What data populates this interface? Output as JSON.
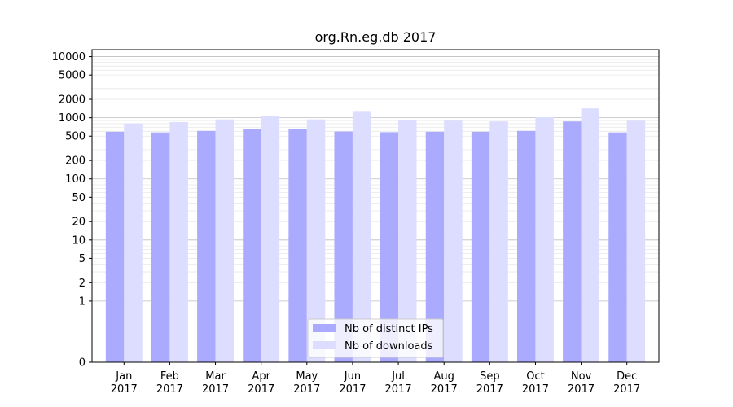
{
  "chart_data": {
    "type": "bar",
    "title": "org.Rn.eg.db 2017",
    "xlabel": "",
    "ylabel": "",
    "y_scale": "symlog",
    "ylim": [
      0,
      13000
    ],
    "y_ticks": [
      0,
      1,
      2,
      5,
      10,
      20,
      50,
      100,
      200,
      500,
      1000,
      2000,
      5000,
      10000
    ],
    "categories": [
      [
        "Jan",
        "2017"
      ],
      [
        "Feb",
        "2017"
      ],
      [
        "Mar",
        "2017"
      ],
      [
        "Apr",
        "2017"
      ],
      [
        "May",
        "2017"
      ],
      [
        "Jun",
        "2017"
      ],
      [
        "Jul",
        "2017"
      ],
      [
        "Aug",
        "2017"
      ],
      [
        "Sep",
        "2017"
      ],
      [
        "Oct",
        "2017"
      ],
      [
        "Nov",
        "2017"
      ],
      [
        "Dec",
        "2017"
      ]
    ],
    "series": [
      {
        "name": "Nb of distinct IPs",
        "color": "#aaaaff",
        "values": [
          590,
          575,
          610,
          655,
          655,
          595,
          580,
          590,
          590,
          610,
          870,
          575
        ]
      },
      {
        "name": "Nb of downloads",
        "color": "#ddddff",
        "values": [
          810,
          850,
          940,
          1080,
          940,
          1290,
          910,
          895,
          870,
          1020,
          1420,
          890
        ]
      }
    ],
    "legend_position": "bottom-center",
    "grid": true
  }
}
